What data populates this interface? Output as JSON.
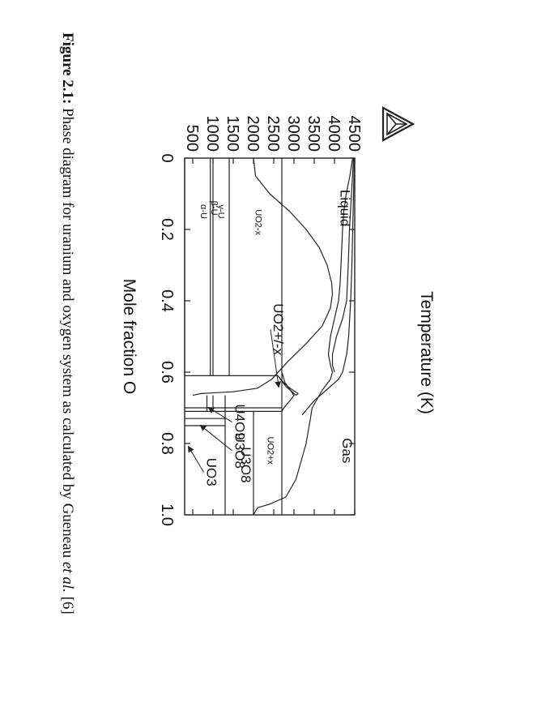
{
  "caption": {
    "figure_label": "Figure 2.1:",
    "text_before_italic": " Phase diagram for uranium and oxygen system as calculated by Gueneau ",
    "italic": "et al.",
    "text_after_italic": " [6]"
  },
  "logo": {
    "icon": "thermo-calc-triangle-logo"
  },
  "chart_data": {
    "type": "line",
    "title": "",
    "xlabel": "Mole fraction O",
    "ylabel": "Temperature (K)",
    "xlim": [
      0,
      1.0
    ],
    "ylim": [
      300,
      4500
    ],
    "xticks": [
      0,
      0.2,
      0.4,
      0.6,
      0.8,
      1.0
    ],
    "xtick_labels": [
      "0",
      "0.2",
      "0.4",
      "0.6",
      "0.8",
      "1.0"
    ],
    "yticks": [
      500,
      1000,
      1500,
      2000,
      2500,
      3000,
      3500,
      4000,
      4500
    ],
    "ytick_labels": [
      "500",
      "1000",
      "1500",
      "2000",
      "2500",
      "3000",
      "3500",
      "4000",
      "4500"
    ],
    "grid": false,
    "series": [
      {
        "points": [
          [
            0.0,
            2000
          ],
          [
            0.05,
            2050
          ],
          [
            0.1,
            2400
          ],
          [
            0.15,
            2900
          ],
          [
            0.2,
            3300
          ],
          [
            0.25,
            3620
          ],
          [
            0.3,
            3820
          ],
          [
            0.35,
            3930
          ],
          [
            0.38,
            3950
          ],
          [
            0.42,
            3900
          ],
          [
            0.47,
            3700
          ],
          [
            0.52,
            3300
          ],
          [
            0.57,
            2850
          ],
          [
            0.62,
            2450
          ],
          [
            0.645,
            2100
          ],
          [
            0.655,
            1500
          ],
          [
            0.66,
            700
          ],
          [
            0.665,
            500
          ]
        ]
      },
      {
        "points": [
          [
            0.0,
            4450
          ],
          [
            0.05,
            4380
          ],
          [
            0.1,
            4290
          ],
          [
            0.15,
            4230
          ],
          [
            0.2,
            4200
          ],
          [
            0.25,
            4180
          ],
          [
            0.3,
            4160
          ],
          [
            0.35,
            4140
          ],
          [
            0.4,
            4100
          ],
          [
            0.45,
            4000
          ],
          [
            0.5,
            3900
          ],
          [
            0.55,
            3850
          ],
          [
            0.58,
            3900
          ],
          [
            0.6,
            3950
          ],
          [
            0.62,
            3900
          ],
          [
            0.65,
            3700
          ],
          [
            0.7,
            3450
          ],
          [
            0.8,
            3300
          ],
          [
            0.9,
            3050
          ],
          [
            0.95,
            2800
          ],
          [
            0.97,
            2400
          ],
          [
            0.98,
            2100
          ],
          [
            1.0,
            2000
          ]
        ]
      },
      {
        "points": [
          [
            0.0,
            4470
          ],
          [
            0.1,
            4420
          ],
          [
            0.2,
            4370
          ],
          [
            0.3,
            4340
          ],
          [
            0.4,
            4300
          ],
          [
            0.45,
            4200
          ],
          [
            0.5,
            4050
          ],
          [
            0.55,
            3950
          ],
          [
            0.58,
            3950
          ],
          [
            0.6,
            4000
          ]
        ]
      },
      {
        "points": [
          [
            0.0,
            4490
          ],
          [
            0.1,
            4470
          ],
          [
            0.2,
            4450
          ],
          [
            0.3,
            4430
          ],
          [
            0.4,
            4400
          ],
          [
            0.5,
            4350
          ],
          [
            0.55,
            4300
          ],
          [
            0.6,
            4200
          ],
          [
            0.62,
            4100
          ],
          [
            0.65,
            3800
          ],
          [
            0.68,
            3500
          ],
          [
            0.72,
            3200
          ]
        ]
      },
      {
        "points": [
          [
            0.61,
            2600
          ],
          [
            0.64,
            2800
          ],
          [
            0.665,
            3050
          ],
          [
            0.66,
            3100
          ],
          [
            0.645,
            2900
          ],
          [
            0.63,
            2750
          ],
          [
            0.61,
            2600
          ]
        ]
      },
      {
        "points": [
          [
            0.6,
            2700
          ],
          [
            0.63,
            2780
          ],
          [
            0.665,
            3000
          ],
          [
            0.68,
            2900
          ],
          [
            0.7,
            2750
          ],
          [
            0.71,
            2700
          ]
        ]
      },
      {
        "points": [
          [
            0.0,
            2700
          ],
          [
            1.0,
            2700
          ]
        ]
      },
      {
        "points": [
          [
            0.0,
            1400
          ],
          [
            0.61,
            1400
          ]
        ]
      },
      {
        "points": [
          [
            0.0,
            1000
          ],
          [
            0.61,
            1000
          ]
        ]
      },
      {
        "points": [
          [
            0.0,
            935
          ],
          [
            0.61,
            935
          ]
        ]
      },
      {
        "points": [
          [
            0.0,
            300
          ],
          [
            0.61,
            300
          ]
        ]
      },
      {
        "points": [
          [
            0.61,
            300
          ],
          [
            0.61,
            2600
          ]
        ]
      },
      {
        "points": [
          [
            0.7,
            2700
          ],
          [
            0.7,
            300
          ]
        ]
      },
      {
        "points": [
          [
            0.71,
            2700
          ],
          [
            0.71,
            300
          ]
        ]
      },
      {
        "points": [
          [
            0.665,
            1300
          ],
          [
            0.71,
            1300
          ]
        ]
      },
      {
        "points": [
          [
            0.665,
            1000
          ],
          [
            0.71,
            1000
          ]
        ]
      },
      {
        "points": [
          [
            0.665,
            850
          ],
          [
            0.71,
            850
          ]
        ]
      },
      {
        "points": [
          [
            0.71,
            1300
          ],
          [
            1.0,
            1300
          ]
        ]
      },
      {
        "points": [
          [
            0.71,
            2000
          ],
          [
            1.0,
            2000
          ]
        ]
      },
      {
        "points": [
          [
            0.75,
            1300
          ],
          [
            0.75,
            300
          ]
        ]
      },
      {
        "points": [
          [
            0.73,
            1300
          ],
          [
            0.73,
            300
          ]
        ]
      }
    ],
    "annotations": [
      {
        "text": "Liquid",
        "x": 0.14,
        "y": 4150
      },
      {
        "text": "Gas",
        "x": 0.82,
        "y": 4200
      },
      {
        "text": "UO2-x",
        "x": 0.18,
        "y": 2050
      },
      {
        "text": "γ-U",
        "x": 0.15,
        "y": 1130
      },
      {
        "text": "β-U",
        "x": 0.14,
        "y": 960
      },
      {
        "text": "α-U",
        "x": 0.15,
        "y": 700
      },
      {
        "text": "UO2+x",
        "x": 0.82,
        "y": 2350
      },
      {
        "text": "UO2+/-x",
        "x": 0.48,
        "y": 2500,
        "arrow_to": [
          0.64,
          2620
        ]
      },
      {
        "text": "U3O8",
        "x": 0.86,
        "y": 1700
      },
      {
        "text": "UO3",
        "x": 0.88,
        "y": 850,
        "arrow_to": [
          0.81,
          400
        ]
      },
      {
        "text": "U4O9",
        "x": 0.74,
        "y": 1550,
        "arrow_to": [
          0.7,
          900
        ]
      },
      {
        "text": "U3O8",
        "x": 0.82,
        "y": 1550,
        "arrow_to": [
          0.75,
          700
        ]
      }
    ]
  }
}
